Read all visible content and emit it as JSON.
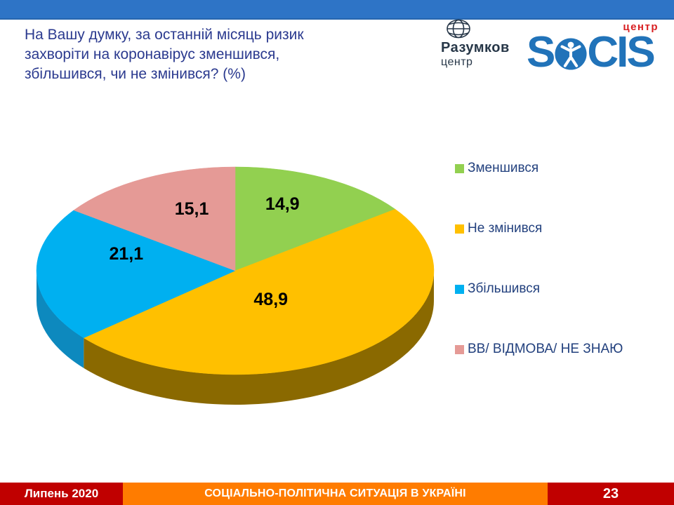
{
  "slide": {
    "title": "На Вашу думку, за останній місяць ризик захворіти на коронавірус зменшився, збільшився, чи не змінився? (%)",
    "accent_bar_color": "#2E74C6"
  },
  "logos": {
    "razumkov": {
      "name": "Разумков",
      "subtitle": "центр"
    },
    "socis": {
      "wordmark_left": "S",
      "wordmark_right": "CIS",
      "tagline": "центр",
      "brand_blue": "#2173B9",
      "brand_red": "#D81E20"
    }
  },
  "chart_data": {
    "type": "pie",
    "style": "3d",
    "title": "На Вашу думку, за останній місяць ризик захворіти на коронавірус зменшився, збільшився, чи не змінився? (%)",
    "unit": "%",
    "labels": [
      "Зменшився",
      "Не змінився",
      "Збільшився",
      "ВВ/ ВІДМОВА/  НЕ ЗНАЮ"
    ],
    "values": [
      14.9,
      48.9,
      21.1,
      15.1
    ],
    "value_labels": [
      "14,9",
      "48,9",
      "21,1",
      "15,1"
    ],
    "colors": [
      "#92D050",
      "#FFC000",
      "#00B0F0",
      "#E59A96"
    ],
    "side_colors": [
      "#6FA33E",
      "#8A6900",
      "#0D89BE",
      "#C17F7B"
    ],
    "start_angle_deg": 0,
    "direction": "clockwise",
    "legend_position": "right"
  },
  "footer": {
    "date_label": "Липень 2020",
    "series_title": "СОЦІАЛЬНО-ПОЛІТИЧНА СИТУАЦІЯ В УКРАЇНІ",
    "page_number": "23",
    "date_bg": "#C00000",
    "title_bg": "#FF7C00",
    "page_bg": "#C00000"
  }
}
